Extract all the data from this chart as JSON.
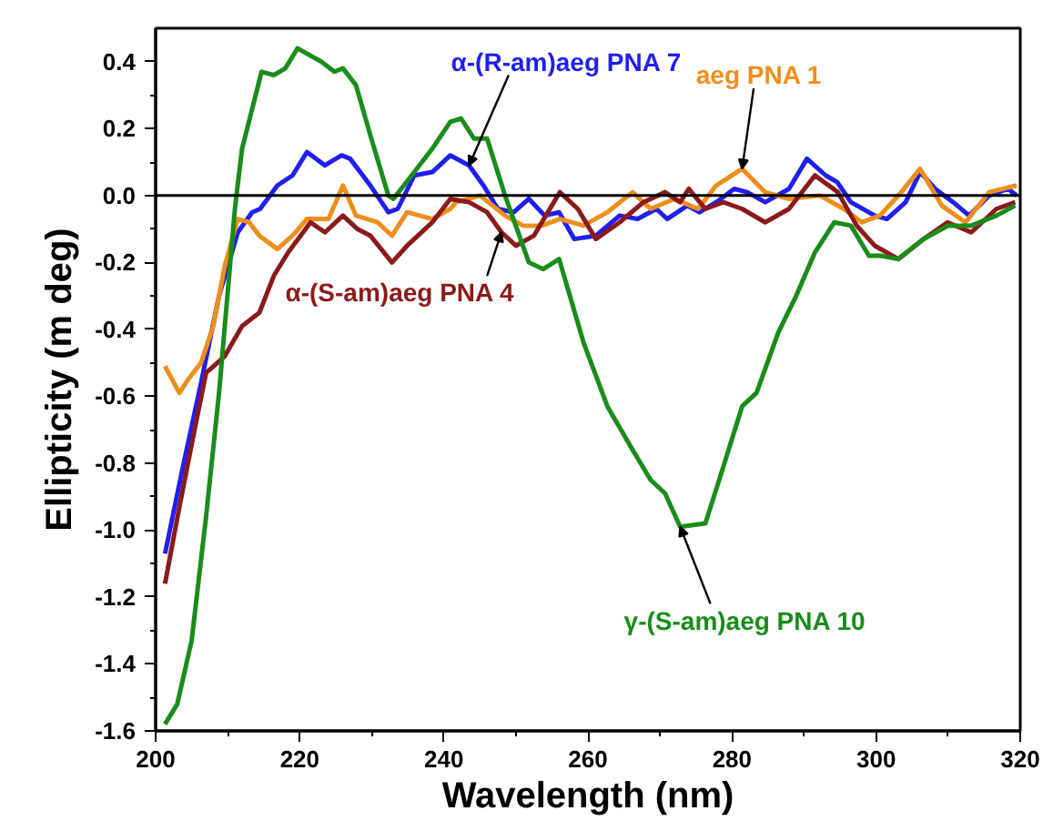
{
  "chart_data": {
    "type": "line",
    "xlabel": "Wavelength (nm)",
    "ylabel": "Ellipticity (m deg)",
    "xlim": [
      200,
      320
    ],
    "ylim": [
      -1.6,
      0.5
    ],
    "xticks": [
      200,
      220,
      240,
      260,
      280,
      300,
      320
    ],
    "yticks": [
      {
        "value": -1.6,
        "label": "-1.6"
      },
      {
        "value": -1.4,
        "label": "-1.4"
      },
      {
        "value": -1.2,
        "label": "-1.2"
      },
      {
        "value": -1.0,
        "label": "-1.0"
      },
      {
        "value": -0.8,
        "label": "-0.8"
      },
      {
        "value": -0.6,
        "label": "-0.6"
      },
      {
        "value": -0.4,
        "label": "-0.4"
      },
      {
        "value": -0.2,
        "label": "-0.2"
      },
      {
        "value": 0,
        "label": "0.0"
      },
      {
        "value": 0.2,
        "label": "0.2"
      },
      {
        "value": 0.4,
        "label": "0.4"
      }
    ],
    "grid": false,
    "ref_lines": [
      {
        "axis": "y",
        "value": 0,
        "color": "#000000"
      }
    ],
    "series": [
      {
        "name": "α-(R-am)aeg PNA 7",
        "color": "#1f1fef",
        "x": [
          201.3,
          203.8,
          206.3,
          208.8,
          211.4,
          213.4,
          214.5,
          216.9,
          219,
          221,
          223.5,
          225.8,
          227,
          229.8,
          232.3,
          233.6,
          235.9,
          238.4,
          240.9,
          243.5,
          245.5,
          247.5,
          249.7,
          251.8,
          254,
          256,
          258.1,
          261.1,
          264.4,
          266.9,
          269.5,
          271,
          273.8,
          275.5,
          277.8,
          280.3,
          282.1,
          284.6,
          287.9,
          290.4,
          293,
          294.6,
          296.5,
          299.8,
          301.5,
          304.1,
          306.1,
          308.2,
          310.7,
          312.9,
          315.7,
          318.3,
          319.5
        ],
        "values": [
          -1.07,
          -0.81,
          -0.56,
          -0.3,
          -0.11,
          -0.05,
          -0.04,
          0.03,
          0.06,
          0.13,
          0.09,
          0.12,
          0.11,
          0.03,
          -0.05,
          -0.04,
          0.06,
          0.07,
          0.12,
          0.09,
          0.03,
          -0.04,
          -0.05,
          -0.01,
          -0.06,
          -0.05,
          -0.13,
          -0.12,
          -0.06,
          -0.07,
          -0.04,
          -0.07,
          -0.03,
          -0.05,
          -0.02,
          0.02,
          0.01,
          -0.02,
          0.02,
          0.11,
          0.06,
          0.04,
          -0.02,
          -0.06,
          -0.07,
          -0.02,
          0.07,
          0.02,
          -0.02,
          -0.06,
          0,
          0.02,
          0.0
        ]
      },
      {
        "name": "aeg PNA 1",
        "color": "#ee8e1c",
        "x": [
          201.3,
          203.3,
          204.5,
          206.3,
          208,
          209.6,
          211.4,
          213,
          214.4,
          216.9,
          219,
          221,
          224,
          226,
          227.8,
          230.8,
          232.8,
          234.9,
          238.4,
          240.9,
          241.7,
          245,
          248.5,
          251,
          253.6,
          256.1,
          259.4,
          262.7,
          266.2,
          268.7,
          272,
          275.3,
          277.8,
          281.4,
          284.6,
          287.9,
          292.2,
          295.5,
          298,
          300.5,
          303.1,
          306.1,
          309.1,
          312.4,
          315.7,
          319.5
        ],
        "values": [
          -0.51,
          -0.59,
          -0.55,
          -0.5,
          -0.39,
          -0.21,
          -0.07,
          -0.08,
          -0.12,
          -0.16,
          -0.12,
          -0.07,
          -0.07,
          0.03,
          -0.06,
          -0.08,
          -0.12,
          -0.05,
          -0.07,
          -0.04,
          -0.02,
          0,
          -0.06,
          -0.09,
          -0.09,
          -0.07,
          -0.09,
          -0.05,
          0.01,
          -0.04,
          -0.01,
          -0.04,
          0.03,
          0.08,
          0.01,
          -0.01,
          0,
          -0.04,
          -0.08,
          -0.06,
          0,
          0.08,
          -0.03,
          -0.08,
          0.01,
          0.03
        ]
      },
      {
        "name": "α-(S-am)aeg PNA 4",
        "color": "#8b1a1a",
        "x": [
          201.3,
          203.3,
          205.5,
          207,
          209.6,
          212,
          214.4,
          216.4,
          218.4,
          221.5,
          223.5,
          226,
          228,
          229.8,
          232.8,
          234.9,
          238.4,
          240.9,
          243.5,
          246,
          248,
          250,
          252.5,
          256.1,
          258.6,
          261.1,
          264.4,
          267.7,
          270.7,
          272.8,
          274,
          276.3,
          278.8,
          281.4,
          284.6,
          287.9,
          291.5,
          294.7,
          297.3,
          299.8,
          303.1,
          306.6,
          309.9,
          313.2,
          316.7,
          319.3
        ],
        "values": [
          -1.16,
          -0.93,
          -0.69,
          -0.53,
          -0.48,
          -0.39,
          -0.35,
          -0.24,
          -0.17,
          -0.08,
          -0.11,
          -0.06,
          -0.1,
          -0.12,
          -0.2,
          -0.15,
          -0.08,
          -0.01,
          -0.02,
          -0.05,
          -0.11,
          -0.15,
          -0.12,
          0.01,
          -0.04,
          -0.13,
          -0.08,
          -0.02,
          0.01,
          -0.02,
          0.02,
          -0.04,
          -0.02,
          -0.04,
          -0.08,
          -0.04,
          0.06,
          0.01,
          -0.09,
          -0.15,
          -0.19,
          -0.13,
          -0.08,
          -0.11,
          -0.04,
          -0.02
        ]
      },
      {
        "name": "γ-(S-am)aeg PNA 10",
        "color": "#1a8c1a",
        "x": [
          201.3,
          203,
          205,
          207,
          208.8,
          211,
          212,
          214.7,
          216.4,
          218,
          219.7,
          223,
          224.8,
          226,
          227.8,
          229.8,
          232.3,
          233,
          235.9,
          238.4,
          240.9,
          242.4,
          244.2,
          246,
          248.5,
          251.8,
          253.8,
          256,
          259.4,
          262.7,
          266.2,
          268.7,
          270.7,
          272.8,
          276.3,
          278.8,
          281.4,
          283.4,
          286.4,
          288.9,
          291.5,
          294.2,
          296.5,
          299,
          300.7,
          303,
          306.6,
          310,
          313.2,
          316.7,
          319.3
        ],
        "values": [
          -1.58,
          -1.52,
          -1.33,
          -0.96,
          -0.59,
          -0.04,
          0.14,
          0.37,
          0.36,
          0.38,
          0.44,
          0.4,
          0.37,
          0.38,
          0.33,
          0.18,
          0.0,
          -0.01,
          0.07,
          0.14,
          0.22,
          0.23,
          0.17,
          0.17,
          0,
          -0.2,
          -0.22,
          -0.19,
          -0.44,
          -0.63,
          -0.76,
          -0.85,
          -0.89,
          -0.99,
          -0.98,
          -0.81,
          -0.63,
          -0.59,
          -0.41,
          -0.3,
          -0.17,
          -0.08,
          -0.09,
          -0.18,
          -0.18,
          -0.19,
          -0.13,
          -0.09,
          -0.09,
          -0.06,
          -0.03
        ]
      }
    ]
  }
}
